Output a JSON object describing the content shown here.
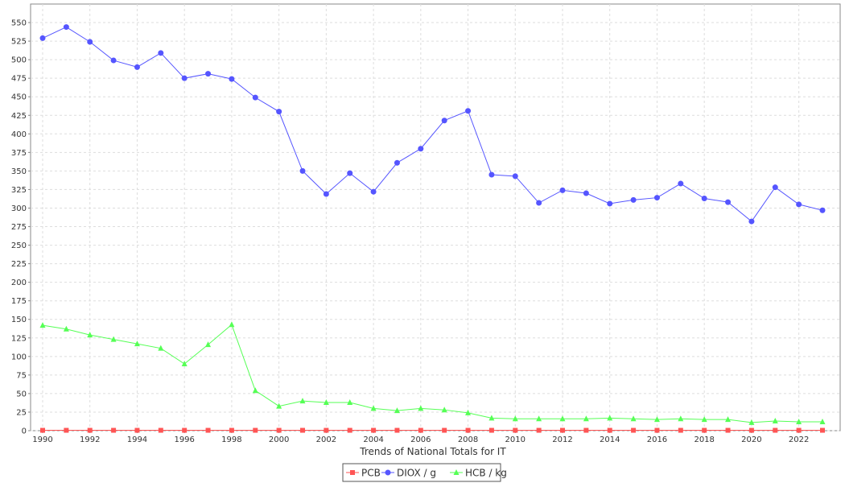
{
  "chart_data": {
    "type": "line",
    "title": "",
    "xlabel": "Trends of National Totals for IT",
    "ylabel": "",
    "ylim": [
      0,
      575
    ],
    "y_ticks": [
      0,
      25,
      50,
      75,
      100,
      125,
      150,
      175,
      200,
      225,
      250,
      275,
      300,
      325,
      350,
      375,
      400,
      425,
      450,
      475,
      500,
      525,
      550
    ],
    "x_ticks": [
      1990,
      1992,
      1994,
      1996,
      1998,
      2000,
      2002,
      2004,
      2006,
      2008,
      2010,
      2012,
      2014,
      2016,
      2018,
      2020,
      2022
    ],
    "grid": true,
    "legend_position": "bottom-center",
    "x": [
      1990,
      1991,
      1992,
      1993,
      1994,
      1995,
      1996,
      1997,
      1998,
      1999,
      2000,
      2001,
      2002,
      2003,
      2004,
      2005,
      2006,
      2007,
      2008,
      2009,
      2010,
      2011,
      2012,
      2013,
      2014,
      2015,
      2016,
      2017,
      2018,
      2019,
      2020,
      2021,
      2022,
      2023
    ],
    "series": [
      {
        "name": "PCB",
        "color": "#ff5555",
        "marker": "square",
        "values": [
          0.5,
          0.5,
          0.5,
          0.5,
          0.5,
          0.5,
          0.5,
          0.5,
          0.5,
          0.5,
          0.5,
          0.5,
          0.5,
          0.5,
          0.5,
          0.5,
          0.5,
          0.5,
          0.5,
          0.5,
          0.5,
          0.5,
          0.5,
          0.5,
          0.5,
          0.5,
          0.5,
          0.5,
          0.5,
          0.5,
          0.5,
          0.5,
          0.5,
          0.5
        ]
      },
      {
        "name": "DIOX / g",
        "color": "#5555ff",
        "marker": "circle",
        "values": [
          529,
          544,
          524,
          499,
          490,
          509,
          475,
          481,
          474,
          449,
          430,
          350,
          319,
          347,
          322,
          361,
          380,
          418,
          431,
          345,
          343,
          307,
          324,
          320,
          306,
          311,
          314,
          333,
          313,
          308,
          282,
          328,
          305,
          297
        ]
      },
      {
        "name": "HCB / kg",
        "color": "#55ff55",
        "marker": "triangle",
        "values": [
          142,
          137,
          129,
          123,
          117,
          111,
          90,
          116,
          143,
          54,
          33,
          40,
          38,
          38,
          30,
          27,
          30,
          28,
          24,
          17,
          16,
          16,
          16,
          16,
          17,
          16,
          15,
          16,
          15,
          15,
          11,
          13,
          12,
          12
        ]
      }
    ]
  }
}
